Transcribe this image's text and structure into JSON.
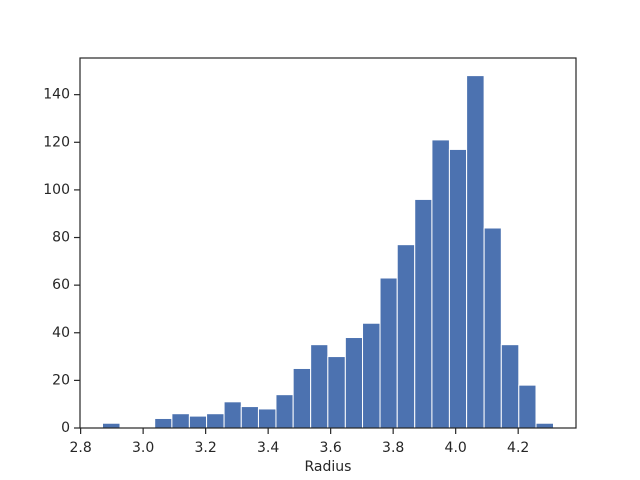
{
  "chart_data": {
    "type": "histogram",
    "x_label": "Radius",
    "bins": [
      2.87,
      2.926,
      2.981,
      3.037,
      3.092,
      3.148,
      3.203,
      3.259,
      3.314,
      3.369,
      3.425,
      3.48,
      3.536,
      3.591,
      3.647,
      3.702,
      3.758,
      3.813,
      3.869,
      3.924,
      3.98,
      4.035,
      4.091,
      4.146,
      4.202,
      4.257,
      4.313
    ],
    "counts": [
      2,
      0,
      0,
      4,
      6,
      5,
      6,
      11,
      9,
      8,
      14,
      25,
      35,
      30,
      38,
      44,
      63,
      77,
      96,
      121,
      117,
      148,
      84,
      35,
      18,
      2
    ],
    "color": "#4c72b0",
    "xlim": [
      2.798,
      4.385
    ],
    "ylim": [
      0,
      155.4
    ],
    "xticks": [
      2.8,
      {
        "value": 3,
        "label": "3.0"
      },
      3.2,
      3.4,
      3.6,
      3.8,
      {
        "value": 4,
        "label": "4.0"
      },
      4.2
    ],
    "yticks": [
      0,
      20,
      40,
      60,
      80,
      100,
      120,
      140
    ]
  }
}
